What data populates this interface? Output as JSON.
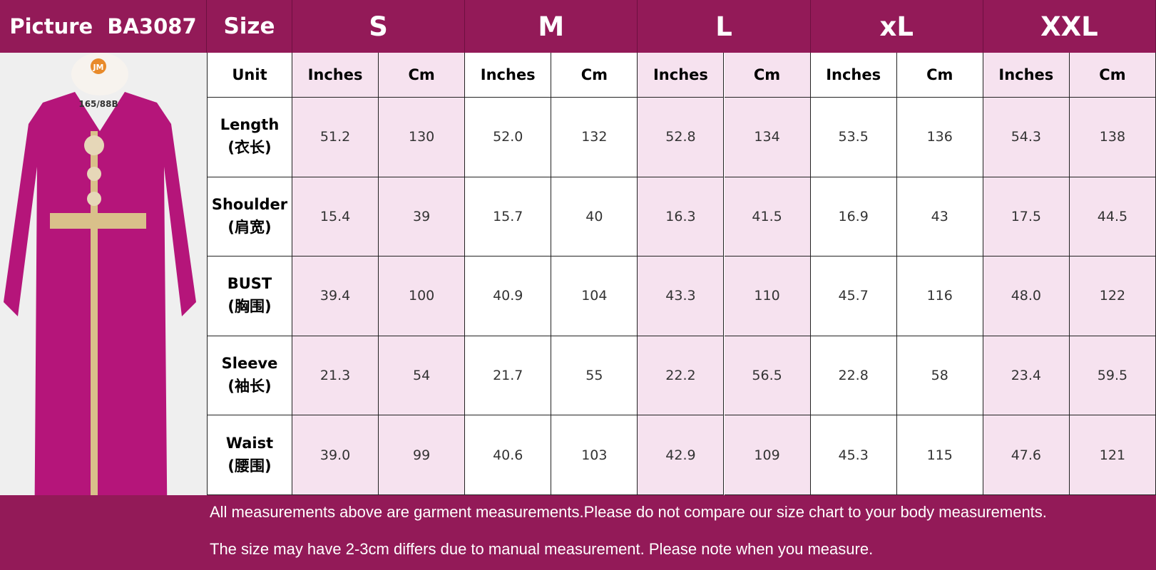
{
  "header": {
    "picture_label": "Picture  BA3087",
    "size_label": "Size",
    "sizes": [
      "S",
      "M",
      "L",
      "xL",
      "XXL"
    ]
  },
  "photo": {
    "mannequin_tag": "JM",
    "size_tag": "165/88B"
  },
  "table": {
    "unit_label": "Unit",
    "units": [
      "Inches",
      "Cm",
      "Inches",
      "Cm",
      "Inches",
      "Cm",
      "Inches",
      "Cm",
      "Inches",
      "Cm"
    ],
    "rows": [
      {
        "name": "Length",
        "name_cn": "(衣长)",
        "values": [
          "51.2",
          "130",
          "52.0",
          "132",
          "52.8",
          "134",
          "53.5",
          "136",
          "54.3",
          "138"
        ]
      },
      {
        "name": "Shoulder",
        "name_cn": "(肩宽)",
        "values": [
          "15.4",
          "39",
          "15.7",
          "40",
          "16.3",
          "41.5",
          "16.9",
          "43",
          "17.5",
          "44.5"
        ]
      },
      {
        "name": "BUST",
        "name_cn": "(胸围)",
        "values": [
          "39.4",
          "100",
          "40.9",
          "104",
          "43.3",
          "110",
          "45.7",
          "116",
          "48.0",
          "122"
        ]
      },
      {
        "name": "Sleeve",
        "name_cn": "(袖长)",
        "values": [
          "21.3",
          "54",
          "21.7",
          "55",
          "22.2",
          "56.5",
          "22.8",
          "58",
          "23.4",
          "59.5"
        ]
      },
      {
        "name": "Waist",
        "name_cn": "(腰围)",
        "values": [
          "39.0",
          "99",
          "40.6",
          "103",
          "42.9",
          "109",
          "45.3",
          "115",
          "47.6",
          "121"
        ]
      }
    ]
  },
  "notes": [
    "All measurements above are garment measurements.Please do not compare our size chart to your body measurements.",
    "The size may have 2-3cm differs due to manual measurement. Please note when you measure."
  ]
}
